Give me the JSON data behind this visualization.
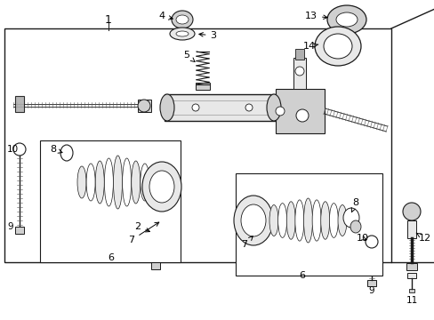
{
  "bg_color": "#ffffff",
  "fig_width": 4.89,
  "fig_height": 3.6,
  "dpi": 100,
  "line_color": "#1a1a1a",
  "fill_light": "#e8e8e8",
  "fill_mid": "#d0d0d0",
  "fill_dark": "#b0b0b0"
}
